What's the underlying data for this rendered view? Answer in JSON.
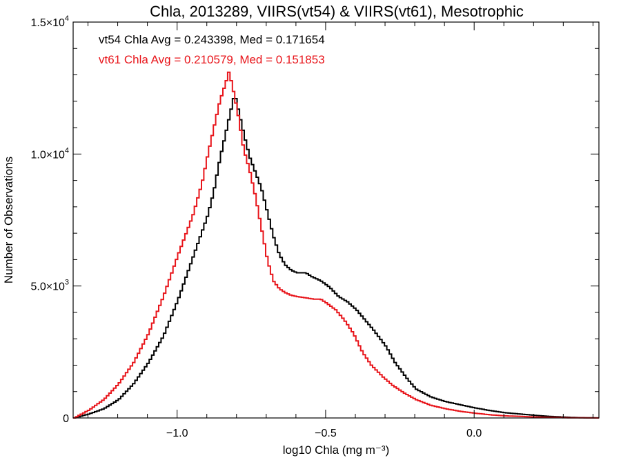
{
  "chart_data": {
    "type": "line",
    "title": "Chla, 2013289, VIIRS(vt54) & VIIRS(vt61), Mesotrophic",
    "xlabel": "log10 Chla (mg m⁻³)",
    "ylabel": "Number of Observations",
    "xlim": [
      -1.35,
      0.42
    ],
    "ylim": [
      0,
      15000
    ],
    "x_ticks": [
      -1.0,
      -0.5,
      0.0
    ],
    "x_tick_labels": [
      "−1.0",
      "−0.5",
      "0.0"
    ],
    "y_ticks": [
      0,
      5000,
      10000,
      15000
    ],
    "y_tick_labels": [
      {
        "mantissa": "0",
        "exponent": ""
      },
      {
        "mantissa": "5.0×10",
        "exponent": "3"
      },
      {
        "mantissa": "1.0×10",
        "exponent": "4"
      },
      {
        "mantissa": "1.5×10",
        "exponent": "4"
      }
    ],
    "annotations": [
      {
        "text": "vt54 Chla Avg = 0.243398, Med = 0.171654",
        "color": "#000000"
      },
      {
        "text": "vt61 Chla Avg = 0.210579, Med = 0.151853",
        "color": "#e8141a"
      }
    ],
    "series": [
      {
        "color": "#000000",
        "points": [
          [
            -1.35,
            0
          ],
          [
            -1.3,
            150
          ],
          [
            -1.25,
            350
          ],
          [
            -1.2,
            700
          ],
          [
            -1.15,
            1300
          ],
          [
            -1.1,
            2100
          ],
          [
            -1.05,
            3100
          ],
          [
            -1.0,
            4500
          ],
          [
            -0.95,
            6100
          ],
          [
            -0.9,
            7700
          ],
          [
            -0.88,
            8600
          ],
          [
            -0.86,
            9800
          ],
          [
            -0.84,
            10800
          ],
          [
            -0.82,
            11800
          ],
          [
            -0.81,
            12300
          ],
          [
            -0.8,
            11800
          ],
          [
            -0.78,
            10800
          ],
          [
            -0.76,
            9900
          ],
          [
            -0.74,
            9300
          ],
          [
            -0.72,
            8700
          ],
          [
            -0.7,
            7800
          ],
          [
            -0.68,
            6900
          ],
          [
            -0.66,
            6200
          ],
          [
            -0.64,
            5800
          ],
          [
            -0.62,
            5600
          ],
          [
            -0.6,
            5500
          ],
          [
            -0.57,
            5500
          ],
          [
            -0.55,
            5350
          ],
          [
            -0.52,
            5200
          ],
          [
            -0.49,
            4950
          ],
          [
            -0.46,
            4600
          ],
          [
            -0.43,
            4400
          ],
          [
            -0.4,
            4100
          ],
          [
            -0.37,
            3700
          ],
          [
            -0.34,
            3300
          ],
          [
            -0.3,
            2700
          ],
          [
            -0.27,
            2100
          ],
          [
            -0.23,
            1500
          ],
          [
            -0.2,
            1100
          ],
          [
            -0.15,
            800
          ],
          [
            -0.1,
            620
          ],
          [
            -0.05,
            500
          ],
          [
            0.0,
            380
          ],
          [
            0.05,
            280
          ],
          [
            0.1,
            200
          ],
          [
            0.15,
            150
          ],
          [
            0.2,
            100
          ],
          [
            0.25,
            60
          ],
          [
            0.3,
            30
          ],
          [
            0.35,
            12
          ],
          [
            0.42,
            0
          ]
        ]
      },
      {
        "color": "#e8141a",
        "points": [
          [
            -1.35,
            0
          ],
          [
            -1.3,
            300
          ],
          [
            -1.25,
            700
          ],
          [
            -1.2,
            1300
          ],
          [
            -1.15,
            2100
          ],
          [
            -1.1,
            3200
          ],
          [
            -1.05,
            4600
          ],
          [
            -1.0,
            6200
          ],
          [
            -0.95,
            7700
          ],
          [
            -0.92,
            8900
          ],
          [
            -0.9,
            10000
          ],
          [
            -0.88,
            11000
          ],
          [
            -0.86,
            12000
          ],
          [
            -0.84,
            12700
          ],
          [
            -0.83,
            13100
          ],
          [
            -0.82,
            12700
          ],
          [
            -0.8,
            11600
          ],
          [
            -0.78,
            10200
          ],
          [
            -0.76,
            9400
          ],
          [
            -0.74,
            8400
          ],
          [
            -0.72,
            7200
          ],
          [
            -0.7,
            6000
          ],
          [
            -0.68,
            5200
          ],
          [
            -0.66,
            4900
          ],
          [
            -0.64,
            4750
          ],
          [
            -0.62,
            4650
          ],
          [
            -0.6,
            4600
          ],
          [
            -0.57,
            4550
          ],
          [
            -0.54,
            4500
          ],
          [
            -0.52,
            4500
          ],
          [
            -0.5,
            4350
          ],
          [
            -0.47,
            4100
          ],
          [
            -0.44,
            3700
          ],
          [
            -0.41,
            3200
          ],
          [
            -0.38,
            2500
          ],
          [
            -0.35,
            2000
          ],
          [
            -0.31,
            1550
          ],
          [
            -0.28,
            1250
          ],
          [
            -0.24,
            950
          ],
          [
            -0.2,
            700
          ],
          [
            -0.15,
            480
          ],
          [
            -0.1,
            350
          ],
          [
            -0.05,
            250
          ],
          [
            0.0,
            180
          ],
          [
            0.05,
            120
          ],
          [
            0.1,
            80
          ],
          [
            0.15,
            60
          ],
          [
            0.2,
            35
          ],
          [
            0.25,
            20
          ],
          [
            0.3,
            10
          ],
          [
            0.42,
            0
          ]
        ]
      }
    ]
  }
}
